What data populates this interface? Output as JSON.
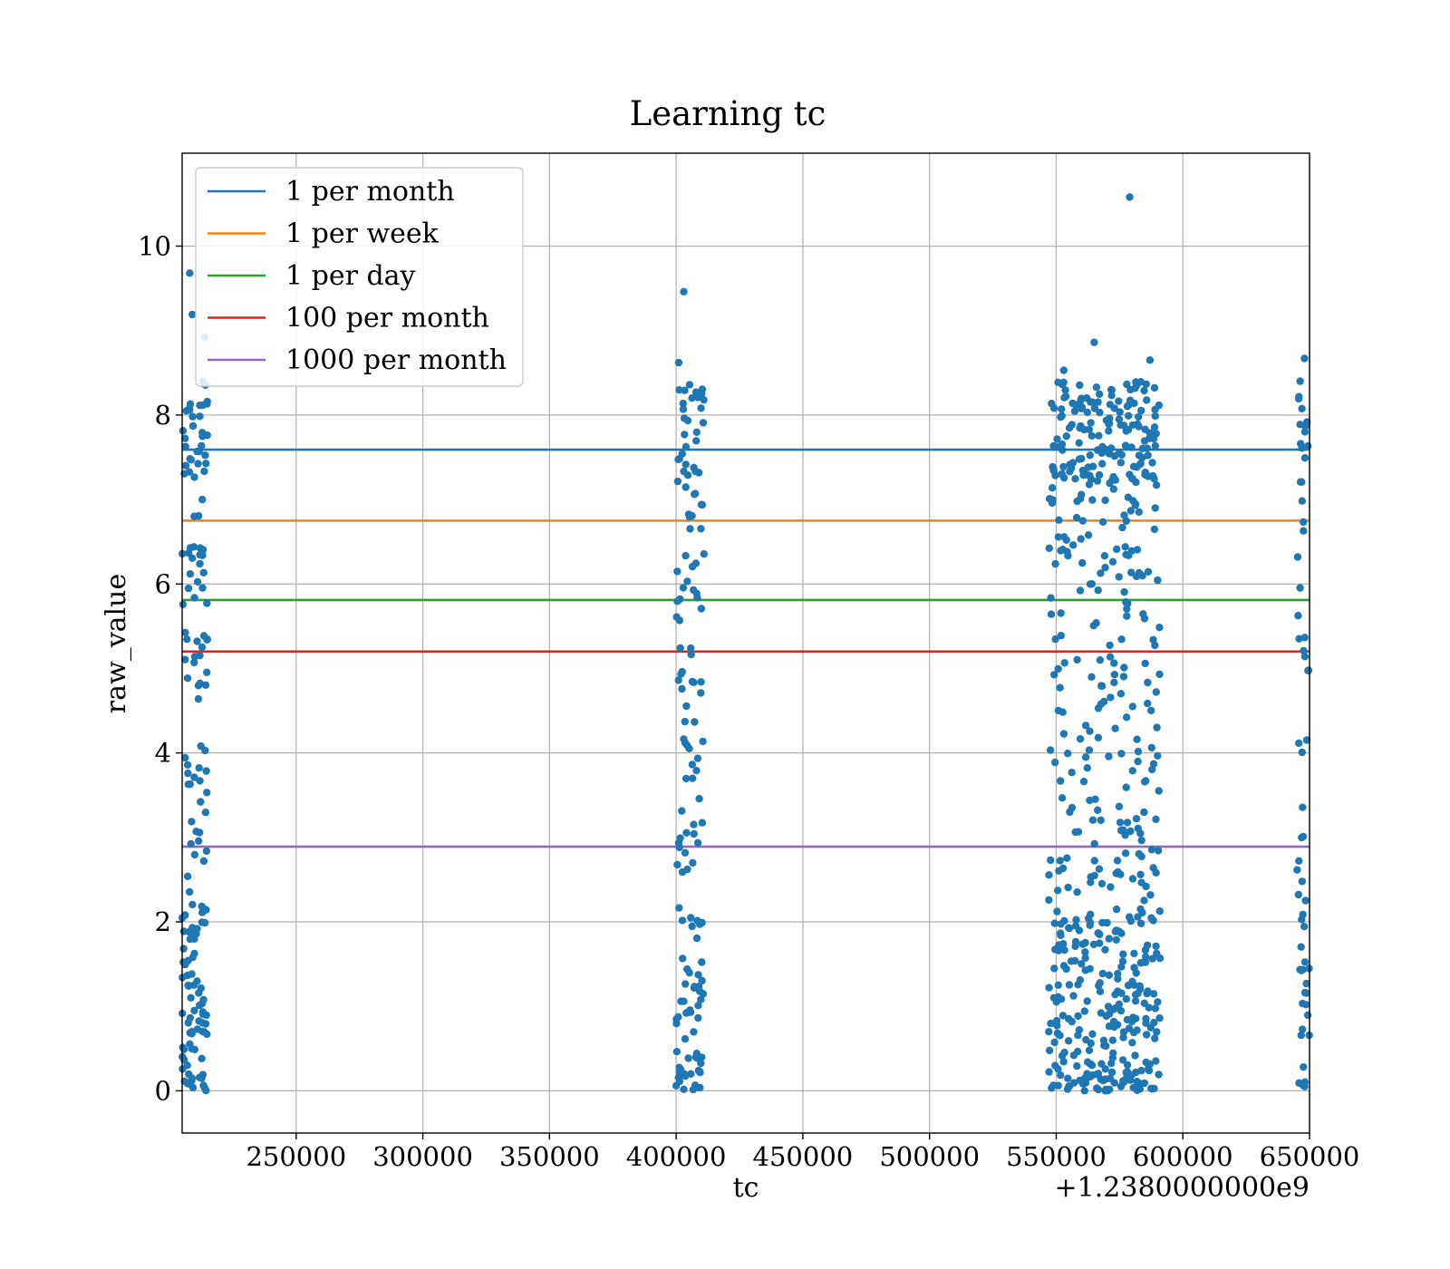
{
  "chart_data": {
    "type": "scatter",
    "title": "Learning tc",
    "xlabel": "tc",
    "ylabel": "raw_value",
    "x_offset_label": "+1.2380000000e9",
    "xlim": [
      205000,
      650000
    ],
    "ylim": [
      -0.5,
      11.1
    ],
    "x_ticks": [
      250000,
      300000,
      350000,
      400000,
      450000,
      500000,
      550000,
      600000,
      650000
    ],
    "x_tick_labels": [
      "250000",
      "300000",
      "350000",
      "400000",
      "450000",
      "500000",
      "550000",
      "600000",
      "650000"
    ],
    "y_ticks": [
      0,
      2,
      4,
      6,
      8,
      10
    ],
    "y_tick_labels": [
      "0",
      "2",
      "4",
      "6",
      "8",
      "10"
    ],
    "grid": true,
    "legend_position": "top-left",
    "point_color": "#1f77b4",
    "reference_lines": [
      {
        "name": "1 per month",
        "y": 7.59,
        "color": "#1f77b4"
      },
      {
        "name": "1 per week",
        "y": 6.75,
        "color": "#ff7f0e"
      },
      {
        "name": "1 per day",
        "y": 5.81,
        "color": "#2ca02c"
      },
      {
        "name": "100 per month",
        "y": 5.2,
        "color": "#d62728"
      },
      {
        "name": "1000 per month",
        "y": 2.89,
        "color": "#9467bd"
      }
    ],
    "scatter_clusters": [
      {
        "x_range": [
          205000,
          215000
        ],
        "count": 170
      },
      {
        "x_range": [
          400000,
          411000
        ],
        "count": 150
      },
      {
        "x_range": [
          547000,
          591000
        ],
        "count": 600
      },
      {
        "x_range": [
          645000,
          650000
        ],
        "count": 60
      }
    ],
    "notable_points": [
      {
        "x": 579000,
        "y": 10.58
      },
      {
        "x": 403000,
        "y": 9.46
      },
      {
        "x": 208000,
        "y": 9.68
      },
      {
        "x": 209000,
        "y": 9.19
      },
      {
        "x": 214000,
        "y": 8.92
      },
      {
        "x": 565000,
        "y": 8.86
      },
      {
        "x": 587000,
        "y": 8.65
      },
      {
        "x": 648000,
        "y": 8.67
      },
      {
        "x": 401000,
        "y": 8.62
      },
      {
        "x": 553000,
        "y": 8.53
      }
    ]
  }
}
